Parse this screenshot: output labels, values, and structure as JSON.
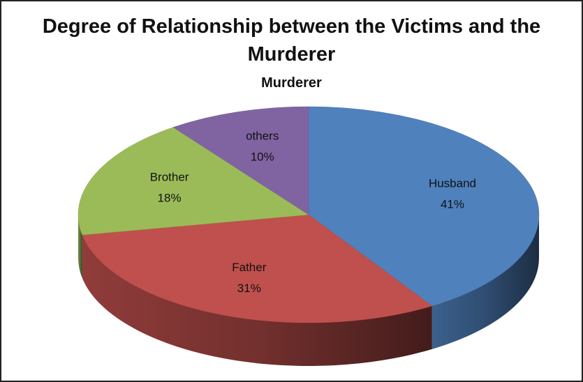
{
  "chart_data": {
    "type": "pie3d",
    "title": "Degree of Relationship between the Victims and the Murderer",
    "subtitle": "Murderer",
    "categories": [
      "Husband",
      "Father",
      "Brother",
      "others"
    ],
    "values": [
      41,
      31,
      18,
      10
    ],
    "value_labels": [
      "41%",
      "31%",
      "18%",
      "10%"
    ],
    "colors": [
      "#4f81bd",
      "#c0504d",
      "#9bbb59",
      "#8064a2"
    ]
  }
}
